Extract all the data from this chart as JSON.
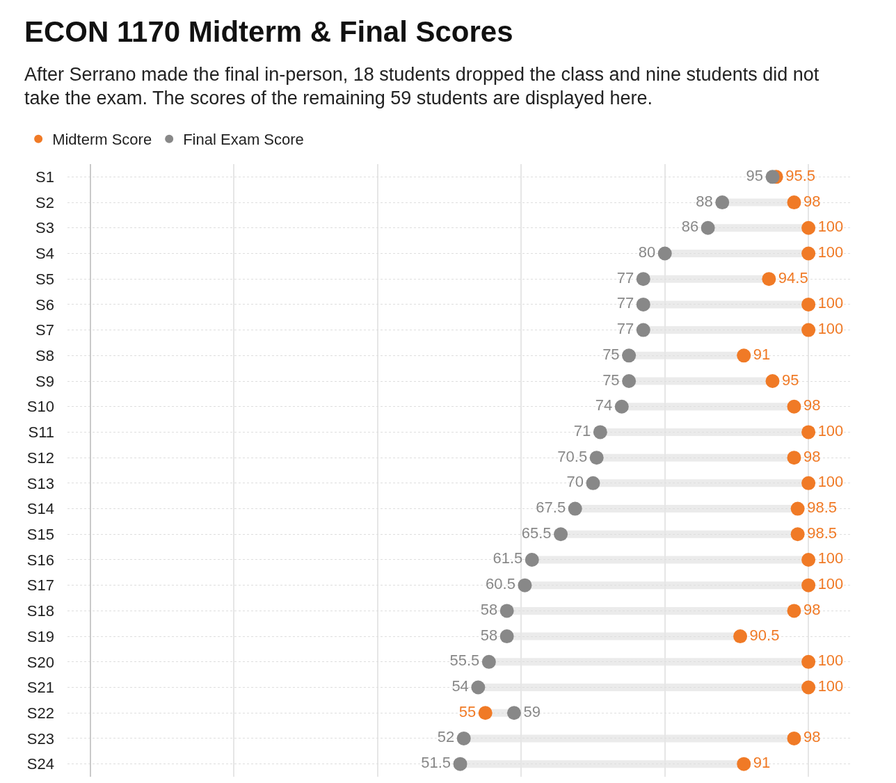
{
  "chart_data": {
    "type": "scatter",
    "title": "ECON 1170 Midterm & Final Scores",
    "subtitle": "After Serrano made the final in-person, 18 students dropped the class and nine students did not take the exam. The scores of the remaining 59 students are displayed here.",
    "orientation": "horizontal",
    "categories": [
      "S1",
      "S2",
      "S3",
      "S4",
      "S5",
      "S6",
      "S7",
      "S8",
      "S9",
      "S10",
      "S11",
      "S12",
      "S13",
      "S14",
      "S15",
      "S16",
      "S17",
      "S18",
      "S19",
      "S20",
      "S21",
      "S22",
      "S23",
      "S24"
    ],
    "series": [
      {
        "name": "Midterm Score",
        "color": "#f07a26",
        "values": [
          95.5,
          98,
          100,
          100,
          94.5,
          100,
          100,
          91,
          95,
          98,
          100,
          98,
          100,
          98.5,
          98.5,
          100,
          100,
          98,
          90.5,
          100,
          100,
          55,
          98,
          91
        ]
      },
      {
        "name": "Final Exam Score",
        "color": "#888888",
        "values": [
          95,
          88,
          86,
          80,
          77,
          77,
          77,
          75,
          75,
          74,
          71,
          70.5,
          70,
          67.5,
          65.5,
          61.5,
          60.5,
          58,
          58,
          55.5,
          54,
          59,
          52,
          51.5
        ]
      }
    ],
    "xlim": [
      -3.2,
      105.8
    ],
    "xticks": [
      {
        "value": 0,
        "label": null
      },
      {
        "value": 20,
        "label": null
      },
      {
        "value": 40,
        "label": null
      },
      {
        "value": 60,
        "label": null
      },
      {
        "value": 80,
        "label": null
      },
      {
        "value": 100,
        "label": null
      }
    ],
    "tick_labels": "y",
    "grid": true,
    "legend": "top left",
    "marker": "circle",
    "data_labels": true
  }
}
